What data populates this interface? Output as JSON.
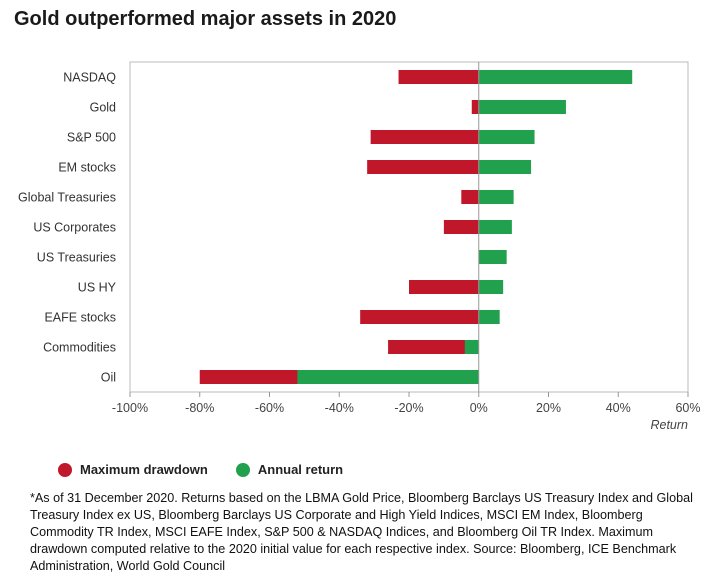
{
  "title": "Gold outperformed major assets in 2020",
  "legend": [
    {
      "label": "Maximum drawdown",
      "color": "#c0182a"
    },
    {
      "label": "Annual return",
      "color": "#21a04d"
    }
  ],
  "footnote": "*As of 31 December 2020. Returns based on the LBMA Gold Price, Bloomberg Barclays US Treasury Index and Global Treasury Index ex US, Bloomberg Barclays US Corporate and High Yield Indices, MSCI EM Index, Bloomberg Commodity TR Index, MSCI EAFE Index, S&P 500 & NASDAQ Indices, and Bloomberg Oil TR Index. Maximum drawdown computed relative to the 2020 initial value for each respective index. Source: Bloomberg, ICE Benchmark Administration, World Gold Council",
  "chart_data": {
    "type": "bar",
    "orientation": "horizontal",
    "categories": [
      "NASDAQ",
      "Gold",
      "S&P 500",
      "EM stocks",
      "Global Treasuries",
      "US Corporates",
      "US Treasuries",
      "US HY",
      "EAFE stocks",
      "Commodities",
      "Oil"
    ],
    "series": [
      {
        "name": "Maximum drawdown",
        "color": "#c0182a",
        "values": [
          -23,
          -2,
          -31,
          -32,
          -5,
          -10,
          0,
          -20,
          -34,
          -26,
          -80
        ]
      },
      {
        "name": "Annual return",
        "color": "#21a04d",
        "values": [
          44,
          25,
          16,
          15,
          10,
          9.5,
          8,
          7,
          6,
          -4,
          -52
        ]
      }
    ],
    "xlabel": "Return",
    "xlim": [
      -100,
      60
    ],
    "xticks": [
      -100,
      -80,
      -60,
      -40,
      -20,
      0,
      20,
      40,
      60
    ],
    "xtick_labels": [
      "-100%",
      "-80%",
      "-60%",
      "-40%",
      "-20%",
      "0%",
      "20%",
      "40%",
      "60%"
    ],
    "grid": false,
    "legend_position": "bottom-left"
  }
}
